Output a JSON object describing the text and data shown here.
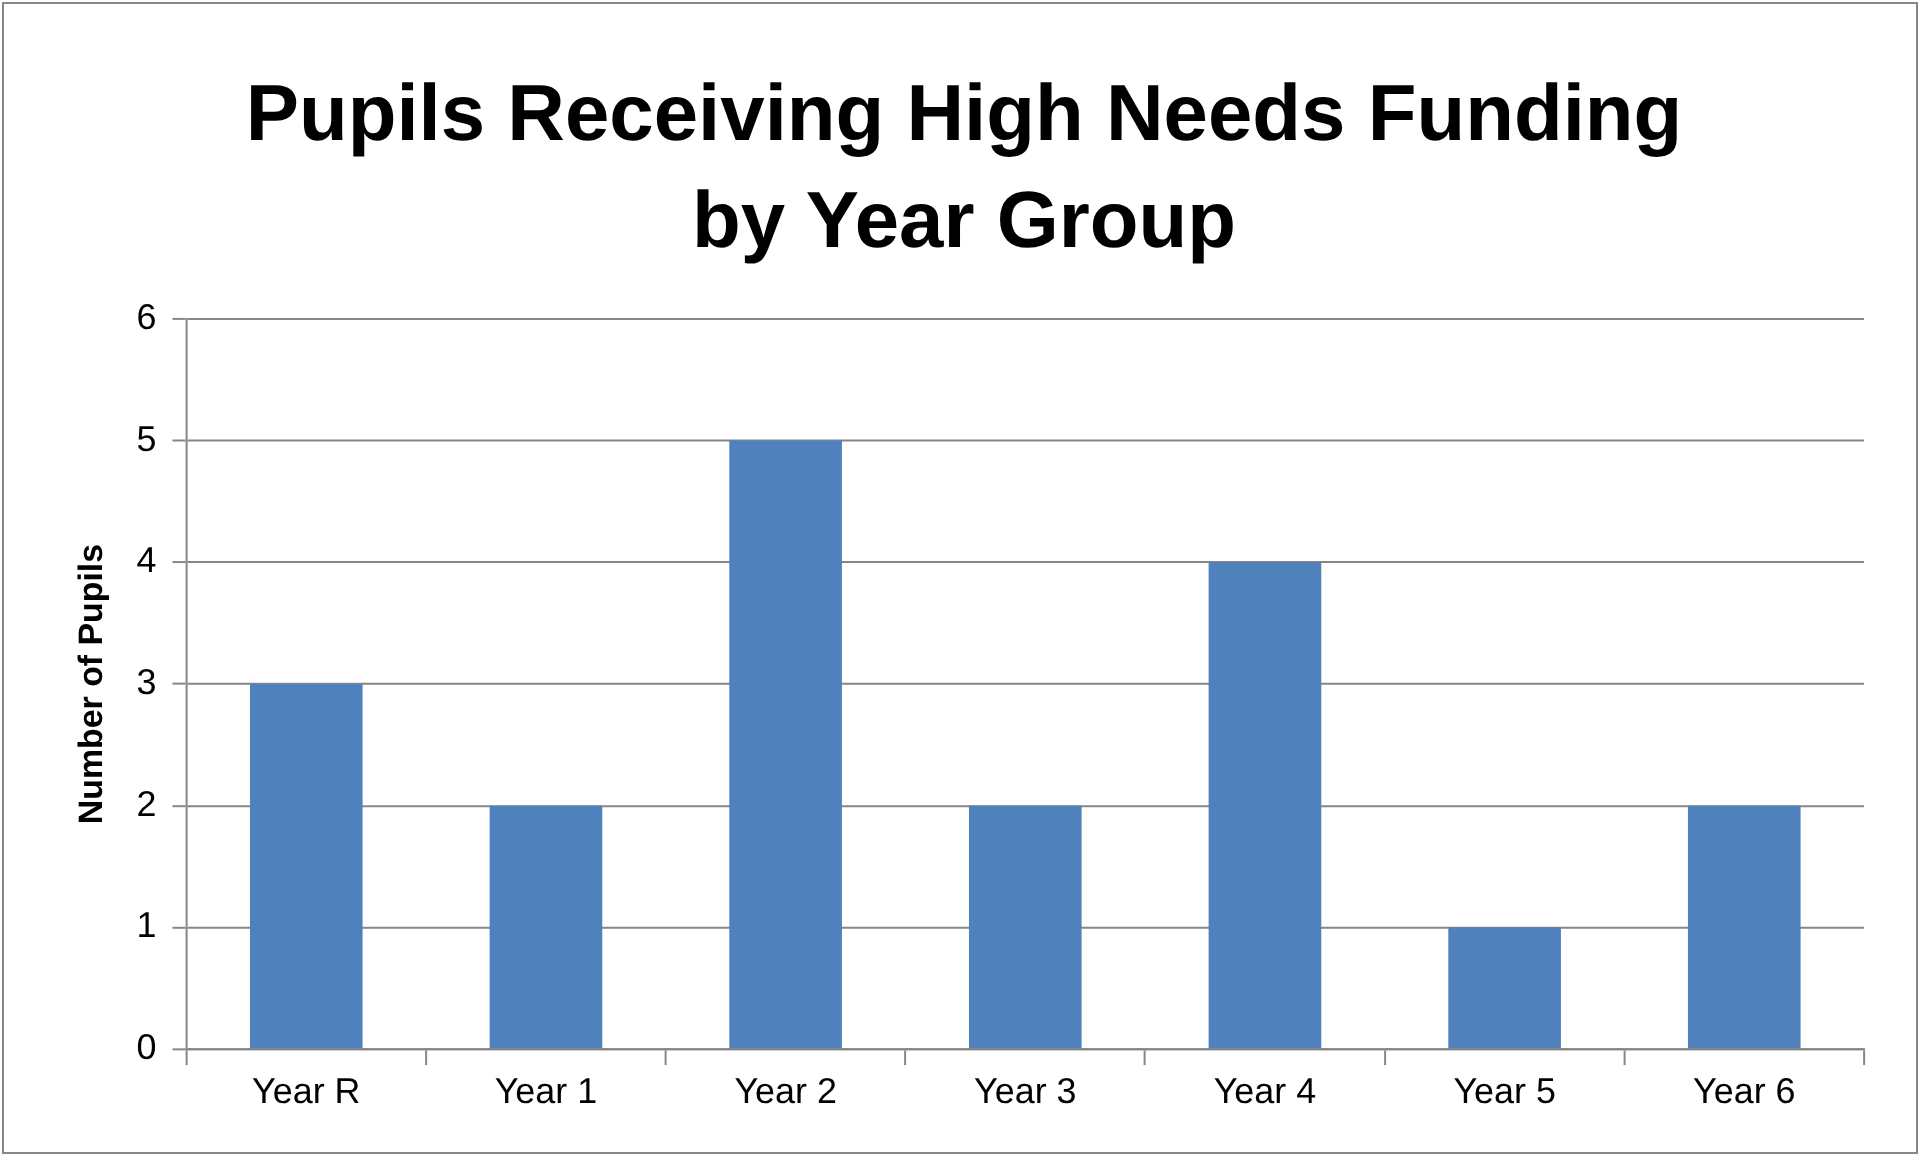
{
  "chart_data": {
    "type": "bar",
    "title": "Pupils Receiving High Needs Funding by Year Group",
    "ylabel": "Number of Pupils",
    "categories": [
      "Year R",
      "Year 1",
      "Year 2",
      "Year 3",
      "Year 4",
      "Year 5",
      "Year 6"
    ],
    "values": [
      3,
      2,
      5,
      2,
      4,
      1,
      2
    ],
    "color": "#4f81bd",
    "ylim": [
      0,
      6
    ],
    "yticks": [
      0,
      1,
      2,
      3,
      4,
      5,
      6
    ],
    "grid": "y",
    "legend": false
  }
}
